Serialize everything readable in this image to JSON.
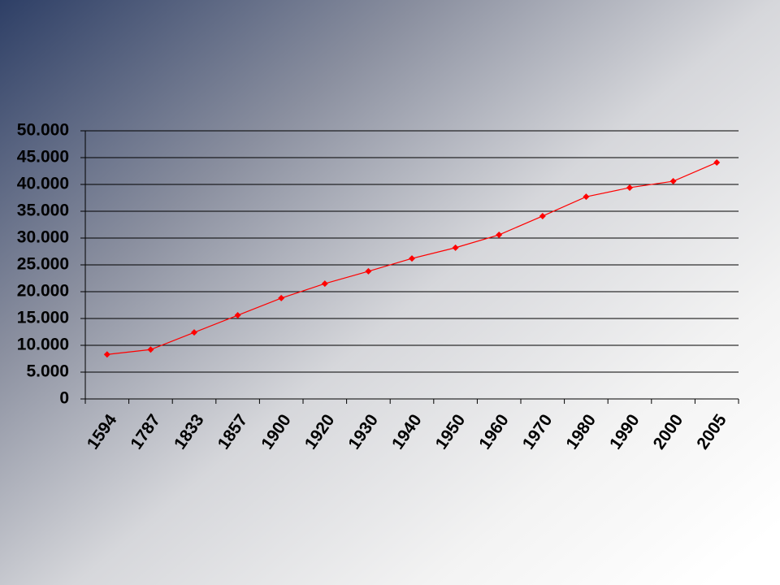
{
  "chart_data": {
    "type": "line",
    "categories": [
      "1594",
      "1787",
      "1833",
      "1857",
      "1900",
      "1920",
      "1930",
      "1940",
      "1950",
      "1960",
      "1970",
      "1980",
      "1990",
      "2000",
      "2005"
    ],
    "series": [
      {
        "color": "#ff0000",
        "values": [
          8300,
          9200,
          12400,
          15600,
          18800,
          21500,
          23800,
          26200,
          28200,
          30600,
          34100,
          37700,
          39400,
          40600,
          44100
        ]
      }
    ],
    "ylim": [
      0,
      50000
    ],
    "yticks": [
      0,
      {
        "value": 5000,
        "label": "5.000"
      },
      {
        "value": 10000,
        "label": "10.000"
      },
      {
        "value": 15000,
        "label": "15.000"
      },
      {
        "value": 20000,
        "label": "20.000"
      },
      {
        "value": 25000,
        "label": "25.000"
      },
      {
        "value": 30000,
        "label": "30.000"
      },
      {
        "value": 35000,
        "label": "35.000"
      },
      {
        "value": 40000,
        "label": "40.000"
      },
      {
        "value": 45000,
        "label": "45.000"
      },
      {
        "value": 50000,
        "label": "50.000"
      }
    ],
    "grid": true
  }
}
